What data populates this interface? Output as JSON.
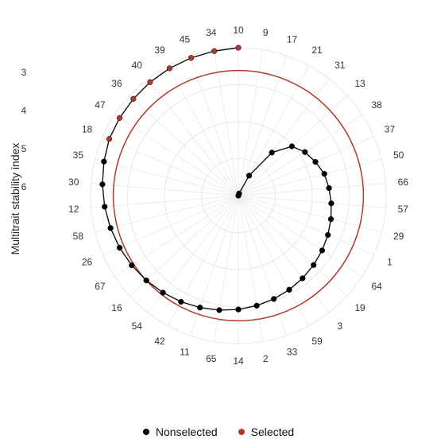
{
  "chart_data": {
    "type": "polar-scatter",
    "title": "",
    "ylabel": "Multitrait stability index",
    "r_ticks": [
      "3",
      "4",
      "5",
      "6"
    ],
    "r_range": [
      3,
      6.25
    ],
    "grid": true,
    "categories": [
      "10",
      "9",
      "17",
      "21",
      "31",
      "13",
      "38",
      "37",
      "50",
      "66",
      "57",
      "29",
      "1",
      "64",
      "19",
      "3",
      "59",
      "33",
      "2",
      "14",
      "65",
      "11",
      "42",
      "54",
      "16",
      "67",
      "26",
      "58",
      "12",
      "30",
      "35",
      "18",
      "47",
      "36",
      "40",
      "39",
      "45",
      "34"
    ],
    "series": [
      {
        "name": "Nonselected",
        "color": "#000000",
        "points": [
          {
            "genotype": "9",
            "msi": 3.0
          },
          {
            "genotype": "17",
            "msi": 3.05
          },
          {
            "genotype": "21",
            "msi": 3.5
          },
          {
            "genotype": "31",
            "msi": 4.2
          },
          {
            "genotype": "13",
            "msi": 4.6
          },
          {
            "genotype": "38",
            "msi": 4.75
          },
          {
            "genotype": "37",
            "msi": 4.85
          },
          {
            "genotype": "50",
            "msi": 4.95
          },
          {
            "genotype": "66",
            "msi": 5.0
          },
          {
            "genotype": "57",
            "msi": 5.05
          },
          {
            "genotype": "29",
            "msi": 5.1
          },
          {
            "genotype": "1",
            "msi": 5.15
          },
          {
            "genotype": "64",
            "msi": 5.2
          },
          {
            "genotype": "19",
            "msi": 5.25
          },
          {
            "genotype": "3",
            "msi": 5.3
          },
          {
            "genotype": "59",
            "msi": 5.35
          },
          {
            "genotype": "33",
            "msi": 5.4
          },
          {
            "genotype": "2",
            "msi": 5.45
          },
          {
            "genotype": "14",
            "msi": 5.5
          },
          {
            "genotype": "65",
            "msi": 5.55
          },
          {
            "genotype": "11",
            "msi": 5.6
          },
          {
            "genotype": "42",
            "msi": 5.65
          },
          {
            "genotype": "54",
            "msi": 5.7
          },
          {
            "genotype": "16",
            "msi": 5.75
          },
          {
            "genotype": "67",
            "msi": 5.8
          },
          {
            "genotype": "26",
            "msi": 5.85
          },
          {
            "genotype": "58",
            "msi": 5.9
          },
          {
            "genotype": "12",
            "msi": 5.95
          },
          {
            "genotype": "30",
            "msi": 6.0
          },
          {
            "genotype": "35",
            "msi": 6.05
          }
        ]
      },
      {
        "name": "Selected",
        "color": "#b03a2e",
        "points": [
          {
            "genotype": "18",
            "msi": 6.1
          },
          {
            "genotype": "47",
            "msi": 6.12
          },
          {
            "genotype": "36",
            "msi": 6.14
          },
          {
            "genotype": "40",
            "msi": 6.16
          },
          {
            "genotype": "39",
            "msi": 6.18
          },
          {
            "genotype": "45",
            "msi": 6.2
          },
          {
            "genotype": "34",
            "msi": 6.22
          },
          {
            "genotype": "10",
            "msi": 6.25
          }
        ]
      }
    ],
    "cutoff": {
      "msi": 5.75,
      "color": "#b03a2e"
    },
    "legend": {
      "position": "bottom",
      "items": [
        "Nonselected",
        "Selected"
      ]
    }
  }
}
